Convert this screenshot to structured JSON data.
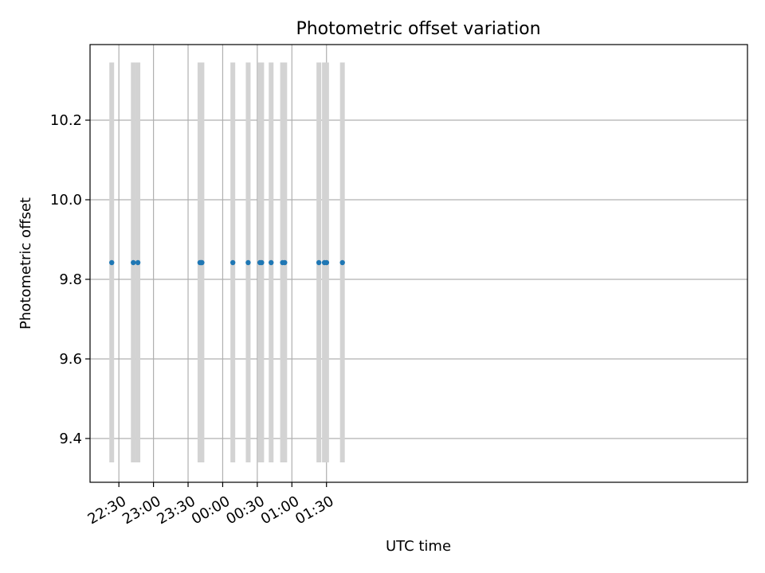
{
  "chart_data": {
    "type": "scatter",
    "title": "Photometric offset variation",
    "xlabel": "UTC time",
    "ylabel": "Photometric offset",
    "xlim_minutes": [
      1325,
      1895
    ],
    "ylim": [
      9.29,
      10.39
    ],
    "grid": true,
    "x_ticks": [
      {
        "minutes": 1350,
        "label": "22:30"
      },
      {
        "minutes": 1380,
        "label": "23:00"
      },
      {
        "minutes": 1410,
        "label": "23:30"
      },
      {
        "minutes": 1440,
        "label": "00:00"
      },
      {
        "minutes": 1470,
        "label": "00:30"
      },
      {
        "minutes": 1500,
        "label": "01:00"
      },
      {
        "minutes": 1530,
        "label": "01:30"
      }
    ],
    "y_ticks": [
      {
        "value": 9.4,
        "label": "9.4"
      },
      {
        "value": 9.6,
        "label": "9.6"
      },
      {
        "value": 9.8,
        "label": "9.8"
      },
      {
        "value": 10.0,
        "label": "10.0"
      },
      {
        "value": 10.2,
        "label": "10.2"
      }
    ],
    "error_range": [
      9.34,
      10.345
    ],
    "series": [
      {
        "name": "Photometric offset",
        "color": "#1f77b4",
        "errorbar_color": "#d3d3d3",
        "x_minutes": [
          1343.8,
          1362.5,
          1366.5,
          1420.3,
          1421.2,
          1422.0,
          1448.8,
          1462.1,
          1472.3,
          1473.8,
          1482.0,
          1491.9,
          1493.8,
          1523.4,
          1528.2,
          1530.1,
          1543.8
        ],
        "values": [
          9.842,
          9.842,
          9.842,
          9.842,
          9.842,
          9.842,
          9.842,
          9.842,
          9.842,
          9.842,
          9.842,
          9.842,
          9.842,
          9.842,
          9.842,
          9.842,
          9.842
        ]
      }
    ]
  }
}
